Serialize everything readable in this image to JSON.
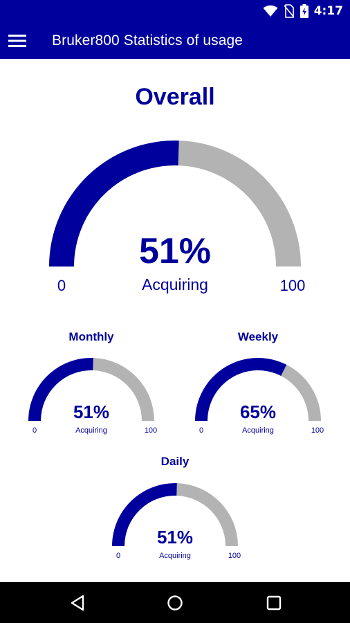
{
  "status_bar": {
    "time": "4:17",
    "icons": [
      "wifi-icon",
      "no-sim-icon",
      "battery-charging-icon"
    ]
  },
  "app_bar": {
    "title": "Bruker800 Statistics of usage",
    "menu_icon": "hamburger-menu-icon"
  },
  "gauges": {
    "overall": {
      "title": "Overall",
      "value_text": "51%",
      "label": "Acquiring",
      "min_label": "0",
      "max_label": "100",
      "value": 51
    },
    "monthly": {
      "title": "Monthly",
      "value_text": "51%",
      "label": "Acquiring",
      "min_label": "0",
      "max_label": "100",
      "value": 51
    },
    "weekly": {
      "title": "Weekly",
      "value_text": "65%",
      "label": "Acquiring",
      "min_label": "0",
      "max_label": "100",
      "value": 65
    },
    "daily": {
      "title": "Daily",
      "value_text": "51%",
      "label": "Acquiring",
      "min_label": "0",
      "max_label": "100",
      "value": 51
    }
  },
  "nav_bar": {
    "icons": [
      "back-icon",
      "home-icon",
      "recents-icon"
    ]
  },
  "colors": {
    "primary": "#00009c",
    "track": "#b3b3b3",
    "bar_bg": "#000000"
  }
}
